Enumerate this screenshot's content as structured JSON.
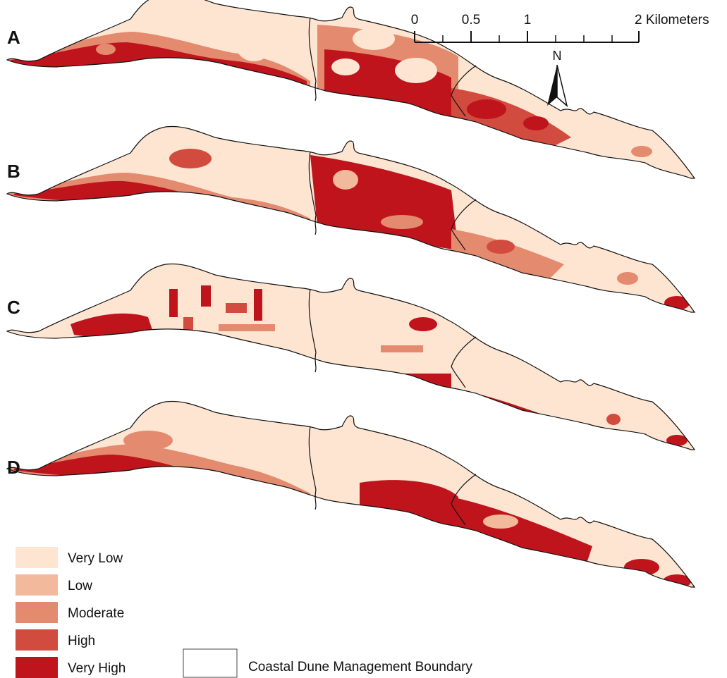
{
  "panels": [
    {
      "label": "A"
    },
    {
      "label": "B"
    },
    {
      "label": "C"
    },
    {
      "label": "D"
    }
  ],
  "scale_bar": {
    "ticks": [
      "0",
      "0.5",
      "1",
      "2 Kilometers"
    ]
  },
  "north_arrow": {
    "label": "N"
  },
  "legend": {
    "classes": [
      {
        "label": "Very Low",
        "color": "#fde5d2"
      },
      {
        "label": "Low",
        "color": "#f2b99c"
      },
      {
        "label": "Moderate",
        "color": "#e48a6f"
      },
      {
        "label": "High",
        "color": "#d24b3f"
      },
      {
        "label": "Very High",
        "color": "#c0141c"
      }
    ],
    "boundary_label": "Coastal Dune Management Boundary"
  }
}
